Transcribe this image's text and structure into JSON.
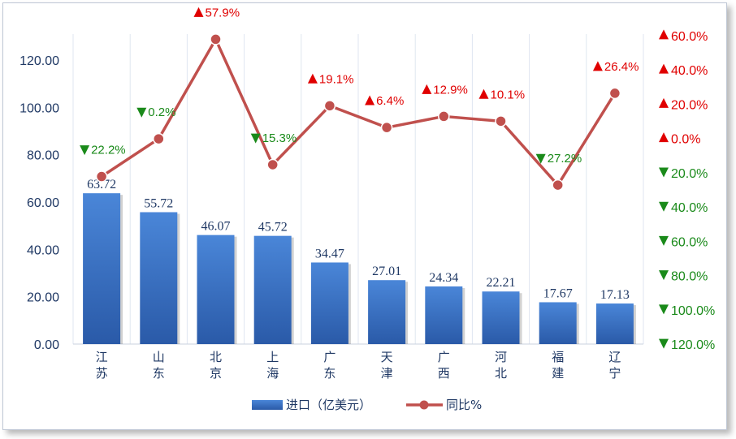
{
  "chart_data": {
    "type": "bar",
    "categories": [
      "江\n苏",
      "山\n东",
      "北\n京",
      "上\n海",
      "广\n东",
      "天\n津",
      "广\n西",
      "河\n北",
      "福\n建",
      "辽\n宁"
    ],
    "series": [
      {
        "name": "进口（亿美元）",
        "type": "bar",
        "axis": "left",
        "values": [
          63.72,
          55.72,
          46.07,
          45.72,
          34.47,
          27.01,
          24.34,
          22.21,
          17.67,
          17.13
        ],
        "labels": [
          "63.72",
          "55.72",
          "46.07",
          "45.72",
          "34.47",
          "27.01",
          "24.34",
          "22.21",
          "17.67",
          "17.13"
        ],
        "color": "#3a72c4"
      },
      {
        "name": "同比%",
        "type": "line",
        "axis": "right",
        "values": [
          -22.2,
          -0.2,
          57.9,
          -15.3,
          19.1,
          6.4,
          12.9,
          10.1,
          -27.2,
          26.4
        ],
        "labels": [
          "22.2%",
          "0.2%",
          "57.9%",
          "15.3%",
          "19.1%",
          "6.4%",
          "12.9%",
          "10.1%",
          "27.2%",
          "26.4%"
        ],
        "color": "#c0504d"
      }
    ],
    "left_axis": {
      "ylim": [
        0,
        130
      ],
      "ticks": [
        0,
        20,
        40,
        60,
        80,
        100,
        120
      ],
      "tick_labels": [
        "0.00",
        "20.00",
        "40.00",
        "60.00",
        "80.00",
        "100.00",
        "120.00"
      ]
    },
    "right_axis": {
      "ylim": [
        -120,
        60
      ],
      "ticks": [
        60,
        40,
        20,
        0,
        -20,
        -40,
        -60,
        -80,
        -100,
        -120
      ],
      "tick_labels": [
        "60.0%",
        "40.0%",
        "20.0%",
        "0.0%",
        "20.0%",
        "40.0%",
        "60.0%",
        "80.0%",
        "100.0%",
        "120.0%"
      ]
    },
    "up_color": "#e00000",
    "down_color": "#1a8a1a",
    "legend": {
      "position": "bottom",
      "items": [
        "进口（亿美元）",
        "同比%"
      ]
    },
    "grid": "vertical"
  }
}
